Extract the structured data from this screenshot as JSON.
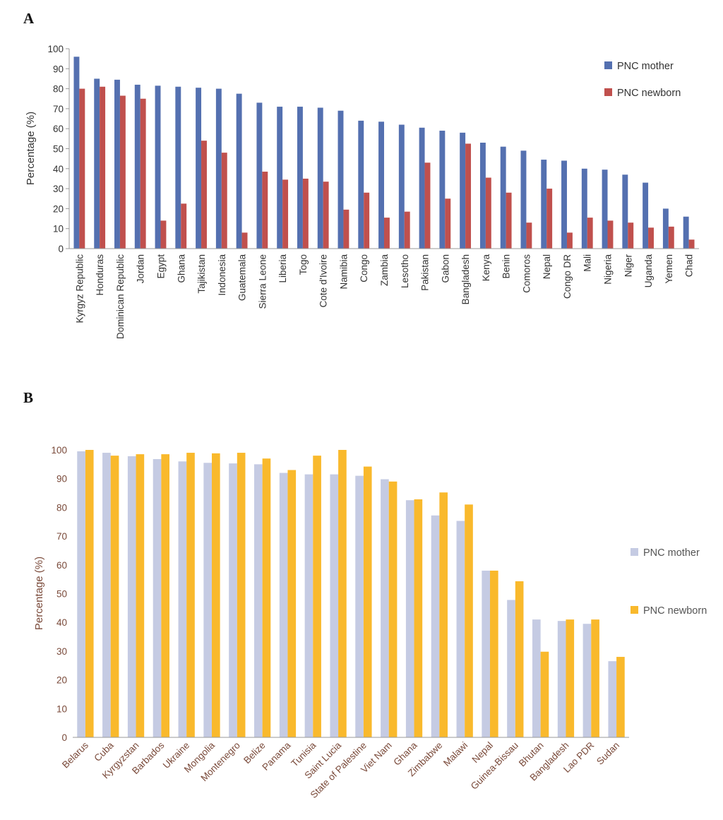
{
  "chart_data": [
    {
      "panel": "A",
      "type": "bar",
      "title": "",
      "xlabel": "",
      "ylabel": "Percentage (%)",
      "ylim": [
        0,
        100
      ],
      "yticks": [
        "0",
        "10",
        "20",
        "30",
        "40",
        "50",
        "60",
        "70",
        "80",
        "90",
        "100"
      ],
      "legend_position": "top-right",
      "categories": [
        "Kyrgyz Republic",
        "Honduras",
        "Dominican Republic",
        "Jordan",
        "Egypt",
        "Ghana",
        "Tajikistan",
        "Indonesia",
        "Guatemala",
        "Sierra Leone",
        "Liberia",
        "Togo",
        "Cote d'Ivoire",
        "Namibia",
        "Congo",
        "Zambia",
        "Lesotho",
        "Pakistan",
        "Gabon",
        "Bangladesh",
        "Kenya",
        "Benin",
        "Comoros",
        "Nepal",
        "Congo DR",
        "Mali",
        "Nigeria",
        "Niger",
        "Uganda",
        "Yemen",
        "Chad"
      ],
      "series": [
        {
          "name": "PNC mother",
          "color": "#5470b0",
          "values": [
            96,
            85,
            84.5,
            82,
            81.5,
            81,
            80.5,
            80,
            77.5,
            73,
            71,
            71,
            70.5,
            69,
            64,
            63.5,
            62,
            60.5,
            59,
            58,
            53,
            51,
            49,
            44.5,
            44,
            40,
            39.5,
            37,
            33,
            20,
            16
          ]
        },
        {
          "name": "PNC newborn",
          "color": "#c0504d",
          "values": [
            80,
            81,
            76.5,
            75,
            14,
            22.5,
            54,
            48,
            8,
            38.5,
            34.5,
            35,
            33.5,
            19.5,
            28,
            15.5,
            18.5,
            43,
            25,
            52.5,
            35.5,
            28,
            13,
            30,
            8,
            15.5,
            14,
            13,
            10.5,
            11,
            4.5
          ]
        }
      ]
    },
    {
      "panel": "B",
      "type": "bar",
      "title": "",
      "xlabel": "",
      "ylabel": "Percentage (%)",
      "ylim": [
        0,
        100
      ],
      "yticks": [
        "0",
        "10",
        "20",
        "30",
        "40",
        "50",
        "60",
        "70",
        "80",
        "90",
        "100"
      ],
      "legend_position": "right",
      "categories": [
        "Belarus",
        "Cuba",
        "Kyrgyzstan",
        "Barbados",
        "Ukraine",
        "Mongolia",
        "Montenegro",
        "Belize",
        "Panama",
        "Tunisia",
        "Saint Lucia",
        "State of Palestine",
        "Viet Nam",
        "Ghana",
        "Zimbabwe",
        "Malawi",
        "Nepal",
        "Guinea-Bissau",
        "Bhutan",
        "Bangladesh",
        "Lao PDR",
        "Sudan"
      ],
      "series": [
        {
          "name": "PNC mother",
          "color": "#c5cbe3",
          "values": [
            99.5,
            99,
            97.8,
            96.8,
            96,
            95.5,
            95.3,
            95,
            92,
            91.5,
            91.5,
            91,
            89.8,
            82.5,
            77.2,
            75.3,
            58,
            47.8,
            41,
            40.5,
            39.5,
            26.5
          ]
        },
        {
          "name": "PNC newborn",
          "color": "#f9b92c",
          "values": [
            100,
            98,
            98.5,
            98.5,
            99,
            98.8,
            99,
            97,
            93,
            98,
            100,
            94.2,
            89,
            82.8,
            85.2,
            81,
            58,
            54.3,
            29.8,
            41,
            41,
            28
          ]
        }
      ]
    }
  ]
}
